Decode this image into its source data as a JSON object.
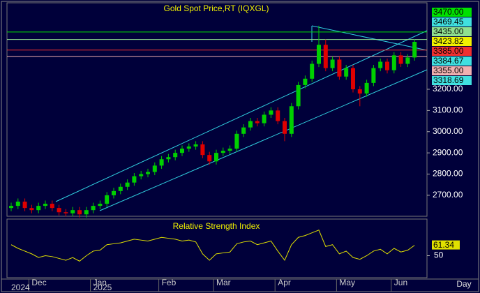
{
  "chart_data": {
    "type": "candlestick",
    "title": "Gold Spot Price,RT (IQXGL)",
    "categories": [
      null,
      null,
      null,
      "Dec",
      null,
      null,
      null,
      null,
      null,
      null,
      null,
      null,
      "Jan",
      null,
      null,
      null,
      null,
      null,
      null,
      null,
      null,
      null,
      "Feb",
      null,
      null,
      null,
      null,
      null,
      null,
      null,
      "Mar",
      null,
      null,
      null,
      null,
      null,
      null,
      null,
      null,
      "Apr",
      null,
      null,
      null,
      null,
      null,
      null,
      null,
      null,
      "May",
      null,
      null,
      null,
      null,
      null,
      null,
      null,
      "Jun",
      null,
      null,
      null
    ],
    "years": [
      "2024",
      null,
      null,
      null,
      null,
      null,
      null,
      null,
      null,
      null,
      null,
      null,
      "2025",
      null,
      null,
      null,
      null,
      null,
      null,
      null,
      null,
      null,
      null,
      null,
      null,
      null,
      null,
      null,
      null,
      null,
      null,
      null,
      null,
      null,
      null,
      null,
      null,
      null,
      null,
      null,
      null,
      null,
      null,
      null,
      null,
      null,
      null,
      null,
      null,
      null,
      null,
      null,
      null,
      null,
      null,
      null,
      null,
      null,
      null,
      null
    ],
    "period": "Day",
    "open": [
      2640,
      2650,
      2670,
      2640,
      2630,
      2650,
      2660,
      2640,
      2620,
      2615,
      2630,
      2610,
      2630,
      2650,
      2660,
      2700,
      2720,
      2740,
      2760,
      2790,
      2800,
      2810,
      2840,
      2870,
      2880,
      2900,
      2920,
      2930,
      2940,
      2890,
      2860,
      2900,
      2910,
      2920,
      2990,
      3020,
      3050,
      3040,
      3080,
      3100,
      3050,
      2990,
      3120,
      3220,
      3250,
      3320,
      3410,
      3300,
      3340,
      3260,
      3300,
      3200,
      3180,
      3230,
      3300,
      3330,
      3290,
      3360,
      3320,
      3350
    ],
    "high": [
      2665,
      2685,
      2685,
      2655,
      2665,
      2675,
      2675,
      2655,
      2635,
      2645,
      2645,
      2645,
      2665,
      2675,
      2715,
      2735,
      2755,
      2775,
      2805,
      2815,
      2825,
      2855,
      2885,
      2895,
      2915,
      2935,
      2945,
      2955,
      2955,
      2905,
      2915,
      2925,
      2935,
      3005,
      3035,
      3065,
      3065,
      3095,
      3115,
      3115,
      3065,
      3135,
      3235,
      3265,
      3335,
      3500,
      3435,
      3355,
      3355,
      3315,
      3315,
      3215,
      3245,
      3315,
      3345,
      3345,
      3375,
      3375,
      3365,
      3435
    ],
    "low": [
      2625,
      2635,
      2625,
      2615,
      2615,
      2635,
      2625,
      2605,
      2600,
      2600,
      2595,
      2595,
      2615,
      2635,
      2645,
      2685,
      2705,
      2725,
      2745,
      2775,
      2785,
      2795,
      2825,
      2855,
      2865,
      2885,
      2905,
      2915,
      2875,
      2845,
      2845,
      2885,
      2895,
      2905,
      2975,
      3005,
      3025,
      3025,
      3065,
      3035,
      2955,
      2975,
      3105,
      3205,
      3235,
      3305,
      3285,
      3285,
      3245,
      3245,
      3185,
      3120,
      3165,
      3215,
      3285,
      3275,
      3275,
      3305,
      3305,
      3335
    ],
    "close": [
      2650,
      2670,
      2640,
      2630,
      2650,
      2660,
      2640,
      2620,
      2615,
      2630,
      2610,
      2630,
      2650,
      2660,
      2700,
      2720,
      2740,
      2760,
      2790,
      2800,
      2810,
      2840,
      2870,
      2880,
      2900,
      2920,
      2930,
      2940,
      2890,
      2860,
      2900,
      2910,
      2920,
      2990,
      3020,
      3050,
      3040,
      3080,
      3100,
      3050,
      2990,
      3120,
      3220,
      3250,
      3320,
      3410,
      3300,
      3340,
      3260,
      3300,
      3200,
      3180,
      3230,
      3300,
      3330,
      3290,
      3360,
      3320,
      3350,
      3423.82
    ],
    "up_color": "#00d000",
    "down_color": "#e00000",
    "ylim": [
      2601,
      3608
    ],
    "yticks": [
      {
        "value": 2700,
        "label": "2700.00"
      },
      {
        "value": 2800,
        "label": "2800.00"
      },
      {
        "value": 2900,
        "label": "2900.00"
      },
      {
        "value": 3000,
        "label": "3000.00"
      },
      {
        "value": 3100,
        "label": "3100.00"
      },
      {
        "value": 3200,
        "label": "3200.00"
      }
    ],
    "price_labels": [
      {
        "value": 3470,
        "label": "3470.00",
        "color": "#00e000",
        "line": true
      },
      {
        "value": 3469.45,
        "label": "3469.45",
        "color": "#40e0e0",
        "line": false
      },
      {
        "value": 3435,
        "label": "3435.00",
        "color": "#90e090",
        "line": true
      },
      {
        "value": 3423.82,
        "label": "3423.82",
        "color": "#f0f000",
        "line": false
      },
      {
        "value": 3385,
        "label": "3385.00",
        "color": "#f03030",
        "line": true
      },
      {
        "value": 3384.67,
        "label": "3384.67",
        "color": "#40e0e0",
        "line": false
      },
      {
        "value": 3355,
        "label": "3355.00",
        "color": "#f0b0b0",
        "line": true
      },
      {
        "value": 3318.69,
        "label": "3318.69",
        "color": "#40e0e0",
        "line": false
      }
    ],
    "rsi": {
      "title": "Relative Strength Index",
      "color": "#e0e000",
      "values": [
        62,
        58,
        55,
        52,
        48,
        50,
        49,
        47,
        45,
        48,
        44,
        50,
        55,
        56,
        62,
        63,
        64,
        66,
        68,
        67,
        66,
        68,
        70,
        69,
        68,
        66,
        67,
        65,
        52,
        45,
        52,
        53,
        54,
        63,
        65,
        66,
        62,
        64,
        66,
        55,
        45,
        62,
        70,
        72,
        75,
        78,
        60,
        62,
        52,
        55,
        48,
        46,
        50,
        55,
        57,
        52,
        58,
        54,
        56,
        61.34
      ],
      "ylim": [
        26,
        90
      ],
      "yticks": [
        50
      ],
      "last": {
        "value": 61.34,
        "label": "61.34"
      }
    }
  }
}
